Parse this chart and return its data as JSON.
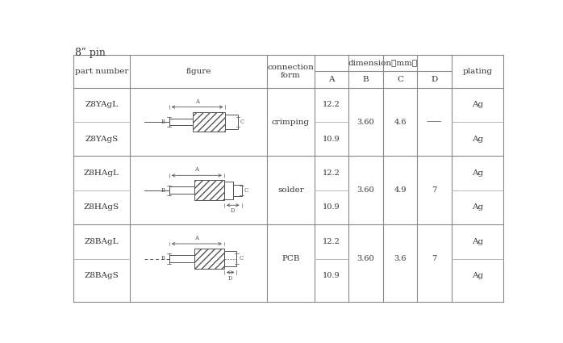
{
  "title": "8ʺ pin",
  "rows": [
    {
      "part_top": "Z8YAgL",
      "part_bot": "Z8YAgS",
      "connection": "crimping",
      "A_top": "12.2",
      "A_bot": "10.9",
      "B": "3.60",
      "C": "4.6",
      "D": "——",
      "plating_top": "Ag",
      "plating_bot": "Ag",
      "figure_type": "crimping"
    },
    {
      "part_top": "Z8HAgL",
      "part_bot": "Z8HAgS",
      "connection": "solder",
      "A_top": "12.2",
      "A_bot": "10.9",
      "B": "3.60",
      "C": "4.9",
      "D": "7",
      "plating_top": "Ag",
      "plating_bot": "Ag",
      "figure_type": "solder"
    },
    {
      "part_top": "Z8BAgL",
      "part_bot": "Z8BAgS",
      "connection": "PCB",
      "A_top": "12.2",
      "A_bot": "10.9",
      "B": "3.60",
      "C": "3.6",
      "D": "7",
      "plating_top": "Ag",
      "plating_bot": "Ag",
      "figure_type": "pcb"
    }
  ],
  "bg_color": "#ffffff",
  "line_color": "#555555",
  "text_color": "#333333",
  "fig_color": "#555555",
  "font_size": 7.5
}
